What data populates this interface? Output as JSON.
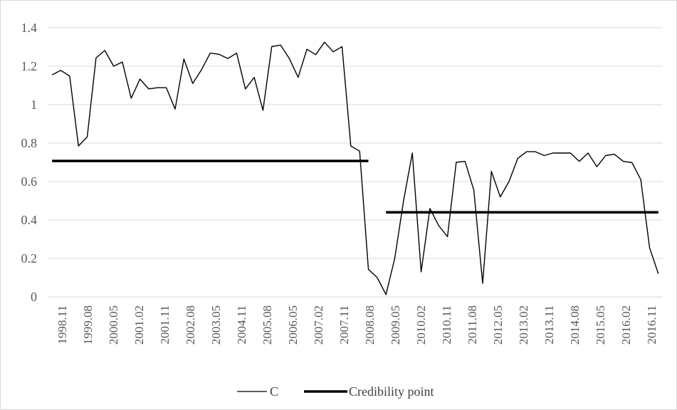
{
  "chart_data": {
    "type": "line",
    "title": "",
    "xlabel": "",
    "ylabel": "",
    "ylim": [
      0,
      1.4
    ],
    "yticks": [
      "0",
      "0.2",
      "0.4",
      "0.6",
      "0.8",
      "1",
      "1.2",
      "1.4"
    ],
    "xtick_labels": [
      "1998.11",
      "1999.08",
      "2000.05",
      "2001.02",
      "2001.11",
      "2002.08",
      "2003.05",
      "2004.11",
      "2005.08",
      "2006.05",
      "2007.02",
      "2007.11",
      "2008.08",
      "2009.05",
      "2010.02",
      "2010.11",
      "2011.08",
      "2012.05",
      "2013.02",
      "2013.11",
      "2014.08",
      "2015.05",
      "2016.02",
      "2016.11"
    ],
    "grid": true,
    "legend_position": "bottom",
    "series": [
      {
        "name": "C",
        "color": "#000000",
        "style": "thin",
        "values": [
          1.155,
          1.178,
          1.148,
          0.785,
          0.832,
          1.243,
          1.282,
          1.2,
          1.222,
          1.033,
          1.133,
          1.082,
          1.088,
          1.088,
          0.977,
          1.237,
          1.11,
          1.181,
          1.268,
          1.262,
          1.24,
          1.268,
          1.082,
          1.142,
          0.97,
          1.302,
          1.31,
          1.24,
          1.142,
          1.288,
          1.26,
          1.325,
          1.275,
          1.302,
          0.785,
          0.758,
          0.143,
          0.1,
          0.012,
          0.2,
          0.5,
          0.748,
          0.13,
          0.46,
          0.37,
          0.313,
          0.7,
          0.705,
          0.555,
          0.07,
          0.653,
          0.52,
          0.6,
          0.72,
          0.755,
          0.755,
          0.735,
          0.748,
          0.748,
          0.748,
          0.705,
          0.748,
          0.677,
          0.735,
          0.742,
          0.705,
          0.698,
          0.61,
          0.255,
          0.12
        ]
      },
      {
        "name": "Credibility point",
        "color": "#000000",
        "style": "thick",
        "segments": [
          {
            "start_index": 0,
            "end_index": 36,
            "value": 0.707
          },
          {
            "start_index": 38,
            "end_index": 69,
            "value": 0.44
          }
        ]
      }
    ]
  }
}
